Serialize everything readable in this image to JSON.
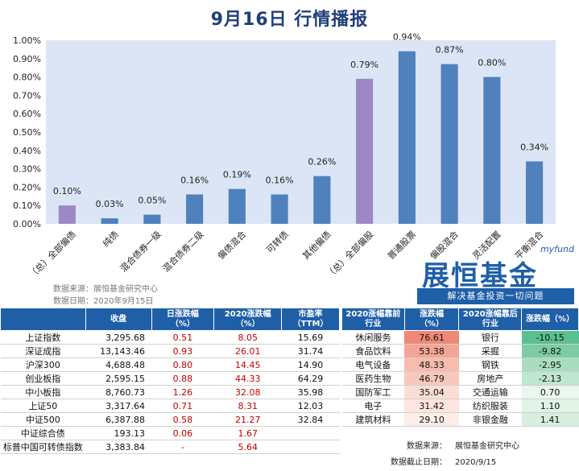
{
  "title": "9月16日  行情播报",
  "chart_data": {
    "type": "bar",
    "categories": [
      "（总）全部偏债",
      "纯债",
      "混合债券一级",
      "混合债券二级",
      "偏债混合",
      "可转债",
      "其他偏债",
      "（总）全部偏股",
      "普通股票",
      "偏股混合",
      "灵活配置",
      "平衡混合"
    ],
    "values": [
      0.1,
      0.03,
      0.05,
      0.16,
      0.19,
      0.16,
      0.26,
      0.79,
      0.94,
      0.87,
      0.8,
      0.34
    ],
    "data_labels": [
      "0.10%",
      "0.03%",
      "0.05%",
      "0.16%",
      "0.19%",
      "0.16%",
      "0.26%",
      "0.79%",
      "0.94%",
      "0.87%",
      "0.80%",
      "0.34%"
    ],
    "bar_colors": [
      "#9b88c4",
      "#4f81bd",
      "#4f81bd",
      "#4f81bd",
      "#4f81bd",
      "#4f81bd",
      "#4f81bd",
      "#9b88c4",
      "#4f81bd",
      "#4f81bd",
      "#4f81bd",
      "#4f81bd"
    ],
    "yticks": [
      "0.00%",
      "0.10%",
      "0.20%",
      "0.30%",
      "0.40%",
      "0.50%",
      "0.60%",
      "0.70%",
      "0.80%",
      "0.90%",
      "1.00%"
    ],
    "ylim": [
      0,
      1.0
    ],
    "grid": false,
    "plot_background": "#dbe5f5"
  },
  "source_lines": [
    "数据来源：展恒基金研究中心",
    "数据日期：2020年9月15日"
  ],
  "logo": {
    "small": "myfund",
    "big": "展恒基金",
    "slogan": "解决基金投资一切问题"
  },
  "index_table": {
    "headers": [
      "",
      "收盘",
      "日涨跌幅\n（%）",
      "2020涨跌幅\n（%）",
      "市盈率\n（TTM）"
    ],
    "rows": [
      [
        "上证指数",
        "3,295.68",
        "0.51",
        "8.05",
        "15.69"
      ],
      [
        "深证成指",
        "13,143.46",
        "0.93",
        "26.01",
        "31.74"
      ],
      [
        "沪深300",
        "4,688.48",
        "0.80",
        "14.45",
        "14.90"
      ],
      [
        "创业板指",
        "2,595.15",
        "0.88",
        "44.33",
        "64.29"
      ],
      [
        "中小板指",
        "8,760.73",
        "1.26",
        "32.08",
        "35.98"
      ],
      [
        "上证50",
        "3,317.64",
        "0.71",
        "8.31",
        "12.03"
      ],
      [
        "中证500",
        "6,387.88",
        "0.58",
        "21.27",
        "32.84"
      ],
      [
        "中证综合债",
        "193.13",
        "0.06",
        "1.67",
        ""
      ],
      [
        "标普中国可转债指数",
        "3,383.84",
        "-",
        "5.64",
        ""
      ]
    ]
  },
  "sector_table": {
    "headers": [
      "2020涨幅靠前\n行业",
      "涨跌幅\n（%）",
      "2020涨幅靠后\n行业",
      "涨跌幅（%）"
    ],
    "rows": [
      [
        "休闲服务",
        "76.61",
        "银行",
        "-10.15"
      ],
      [
        "食品饮料",
        "53.38",
        "采掘",
        "-9.82"
      ],
      [
        "电气设备",
        "48.33",
        "钢铁",
        "-2.95"
      ],
      [
        "医药生物",
        "46.79",
        "房地产",
        "-2.13"
      ],
      [
        "国防军工",
        "35.04",
        "交通运输",
        "0.70"
      ],
      [
        "电子",
        "31.42",
        "纺织服装",
        "1.10"
      ],
      [
        "建筑材料",
        "29.10",
        "非银金融",
        "1.41"
      ]
    ],
    "top_colors": [
      "#f08878",
      "#f4a596",
      "#f7bcae",
      "#f8c8bc",
      "#fbddd4",
      "#fce6df",
      "#fdeee9"
    ],
    "bottom_colors": [
      "#5bc08f",
      "#7ccda4",
      "#a8debf",
      "#bfe6cf",
      "#eaf6ef",
      "#e2f3e8",
      "#d6efdf"
    ]
  },
  "note": [
    {
      "k": "数据来源：",
      "v": "展恒基金研究中心"
    },
    {
      "k": "数据截止日期：",
      "v": "2020/9/15"
    }
  ]
}
